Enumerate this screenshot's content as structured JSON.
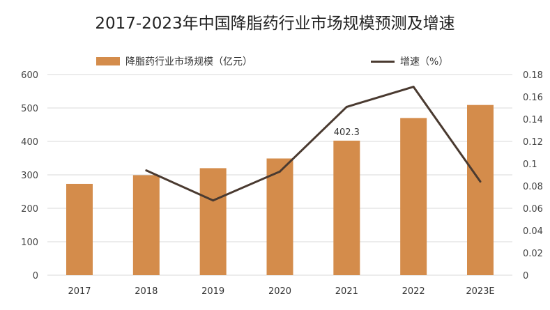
{
  "chart_data": {
    "type": "bar",
    "title": "2017-2023年中国降脂药行业市场规模预测及增速",
    "categories": [
      "2017",
      "2018",
      "2019",
      "2020",
      "2021",
      "2022",
      "2023E"
    ],
    "series": [
      {
        "name": "降脂药行业市场规模（亿元）",
        "type": "bar",
        "axis": "left",
        "values": [
          273,
          299,
          320,
          349,
          402.3,
          470,
          509
        ],
        "color": "#D48C4B"
      },
      {
        "name": "增速（%）",
        "type": "line",
        "axis": "right",
        "values": [
          null,
          0.094,
          0.067,
          0.093,
          0.151,
          0.169,
          0.084
        ],
        "color": "#4A3A30"
      }
    ],
    "data_labels": [
      {
        "category": "2021",
        "text": "402.3"
      }
    ],
    "y_left": {
      "lim": [
        0,
        600
      ],
      "ticks": [
        "0",
        "100",
        "200",
        "300",
        "400",
        "500",
        "600"
      ]
    },
    "y_right": {
      "lim": [
        0,
        0.18
      ],
      "ticks": [
        "0",
        "0.02",
        "0.04",
        "0.06",
        "0.08",
        "0.1",
        "0.12",
        "0.14",
        "0.16",
        "0.18"
      ]
    },
    "grid": true,
    "legend": "top"
  }
}
